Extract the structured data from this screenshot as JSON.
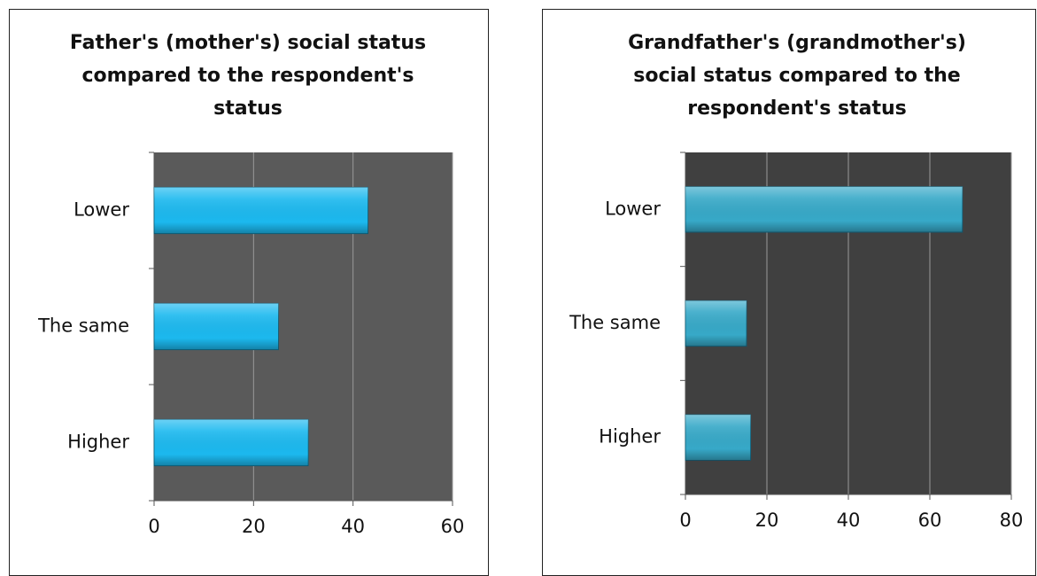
{
  "chart_data": [
    {
      "type": "bar",
      "orientation": "horizontal",
      "title": "Father's (mother's) social status compared to the respondent's status",
      "categories": [
        "Lower",
        "The same",
        "Higher"
      ],
      "values": [
        43,
        25,
        31
      ],
      "color": "#1cb9ef",
      "plot_background": "#5a5a5a",
      "xlim": [
        0,
        60
      ],
      "xticks": [
        0,
        20,
        40,
        60
      ],
      "grid": true
    },
    {
      "type": "bar",
      "orientation": "horizontal",
      "title": "Grandfather's (grandmother's) social status compared to the respondent's status",
      "categories": [
        "Lower",
        "The same",
        "Higher"
      ],
      "values": [
        68,
        15,
        16
      ],
      "color": "#37a9c8",
      "plot_background": "#404040",
      "xlim": [
        0,
        80
      ],
      "xticks": [
        0,
        20,
        40,
        60,
        80
      ],
      "grid": true
    }
  ]
}
